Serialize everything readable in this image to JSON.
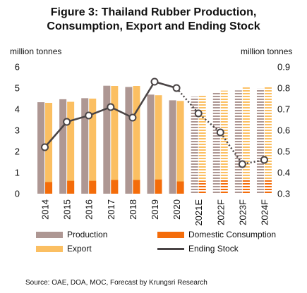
{
  "chart_data": {
    "type": "bar",
    "title_line1": "Figure 3: Thailand Rubber Production,",
    "title_line2": "Consumption, Export and Ending Stock",
    "ylabel_left": "million tonnes",
    "ylabel_right": "million tonnes",
    "ylim_left": [
      0,
      6
    ],
    "ylim_right": [
      0.3,
      0.9
    ],
    "yticks_left": [
      "0",
      "1",
      "2",
      "3",
      "4",
      "5",
      "6"
    ],
    "yticks_right": [
      "0.3",
      "0.4",
      "0.5",
      "0.6",
      "0.7",
      "0.8",
      "0.9"
    ],
    "categories": [
      "2014",
      "2015",
      "2016",
      "2017",
      "2018",
      "2019",
      "2020",
      "2021E",
      "2022F",
      "2023F",
      "2024F"
    ],
    "forecast_start_index": 7,
    "series": [
      {
        "name": "Production",
        "axis": "left",
        "type": "bar",
        "color": "#ae9793",
        "values": [
          4.33,
          4.47,
          4.52,
          5.11,
          5.05,
          4.69,
          4.42,
          4.59,
          4.81,
          4.89,
          4.97
        ]
      },
      {
        "name": "Export",
        "axis": "left",
        "type": "bar",
        "color": "#fbbf62",
        "values": [
          4.3,
          4.35,
          4.5,
          5.1,
          5.1,
          4.66,
          4.39,
          4.63,
          4.88,
          5.03,
          5.05
        ]
      },
      {
        "name": "Domestic Consumption",
        "axis": "left",
        "type": "bar",
        "color": "#f46c0a",
        "values": [
          0.55,
          0.61,
          0.61,
          0.65,
          0.65,
          0.67,
          0.58,
          0.6,
          0.63,
          0.65,
          0.67
        ]
      },
      {
        "name": "Ending Stock",
        "axis": "right",
        "type": "line",
        "color": "#4a4445",
        "values": [
          0.52,
          0.64,
          0.67,
          0.71,
          0.66,
          0.83,
          0.8,
          0.68,
          0.59,
          0.44,
          0.46
        ]
      }
    ],
    "legend": [
      {
        "name": "Production",
        "kind": "bar",
        "color": "#ae9793"
      },
      {
        "name": "Domestic Consumption",
        "kind": "bar",
        "color": "#f46c0a"
      },
      {
        "name": "Export",
        "kind": "bar",
        "color": "#fbbf62"
      },
      {
        "name": "Ending Stock",
        "kind": "line",
        "color": "#4a4445"
      }
    ],
    "source": "Source: OAE, DOA, MOC, Forecast by Krungsri Research"
  }
}
